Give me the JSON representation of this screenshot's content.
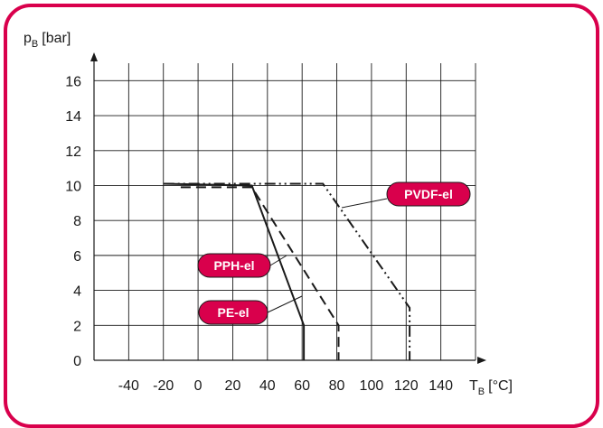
{
  "colors": {
    "frame": "#d9004c",
    "badge": "#d9004c",
    "line": "#1a1a1a",
    "grid": "#1a1a1a"
  },
  "chart_data": {
    "type": "line",
    "ylabel": {
      "main": "p",
      "sub": "B",
      "unit": "[bar]"
    },
    "xlabel": {
      "main": "T",
      "sub": "B",
      "unit": "[°C]"
    },
    "xlim": [
      -60,
      160
    ],
    "ylim": [
      0,
      17
    ],
    "x_ticks": [
      "-40",
      "-20",
      "0",
      "20",
      "40",
      "60",
      "80",
      "100",
      "120",
      "140"
    ],
    "y_ticks": [
      "0",
      "2",
      "4",
      "6",
      "8",
      "10",
      "12",
      "14",
      "16"
    ],
    "grid": true,
    "series": [
      {
        "name": "PE-el",
        "style": "solid",
        "points": [
          [
            -20,
            10.1
          ],
          [
            31,
            10.0
          ],
          [
            61,
            2
          ],
          [
            61,
            0
          ]
        ]
      },
      {
        "name": "PPH-el",
        "style": "dashed",
        "points": [
          [
            -10,
            9.9
          ],
          [
            31,
            9.9
          ],
          [
            81,
            2
          ],
          [
            81,
            0
          ]
        ]
      },
      {
        "name": "PVDF-el",
        "style": "dashdotdot",
        "points": [
          [
            -20,
            10.1
          ],
          [
            72,
            10.1
          ],
          [
            122,
            3
          ],
          [
            122,
            0
          ]
        ]
      }
    ]
  }
}
